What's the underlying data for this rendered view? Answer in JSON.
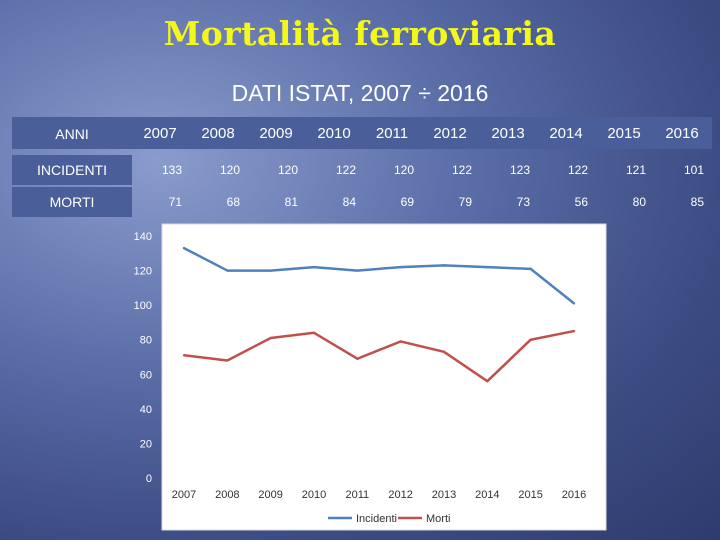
{
  "title": "Mortalità ferroviaria",
  "subtitle": "DATI ISTAT, 2007 ÷ 2016",
  "table": {
    "header_label": "ANNI",
    "years": [
      "2007",
      "2008",
      "2009",
      "2010",
      "2011",
      "2012",
      "2013",
      "2014",
      "2015",
      "2016"
    ],
    "rows": [
      {
        "label": "INCIDENTI",
        "values": [
          "133",
          "120",
          "120",
          "122",
          "120",
          "122",
          "123",
          "122",
          "121",
          "101"
        ]
      },
      {
        "label": "MORTI",
        "values": [
          "71",
          "68",
          "81",
          "84",
          "69",
          "79",
          "73",
          "56",
          "80",
          "85"
        ]
      }
    ]
  },
  "chart_data": {
    "type": "line",
    "x": [
      "2007",
      "2008",
      "2009",
      "2010",
      "2011",
      "2012",
      "2013",
      "2014",
      "2015",
      "2016"
    ],
    "series": [
      {
        "name": "Incidenti",
        "color": "#4f81bd",
        "values": [
          133,
          120,
          120,
          122,
          120,
          122,
          123,
          122,
          121,
          101
        ]
      },
      {
        "name": "Morti",
        "color": "#c0504d",
        "values": [
          71,
          68,
          81,
          84,
          69,
          79,
          73,
          56,
          80,
          85
        ]
      }
    ],
    "ylim": [
      0,
      140
    ],
    "yticks": [
      0,
      20,
      40,
      60,
      80,
      100,
      120,
      140
    ],
    "grid": false,
    "legend": "bottom"
  }
}
